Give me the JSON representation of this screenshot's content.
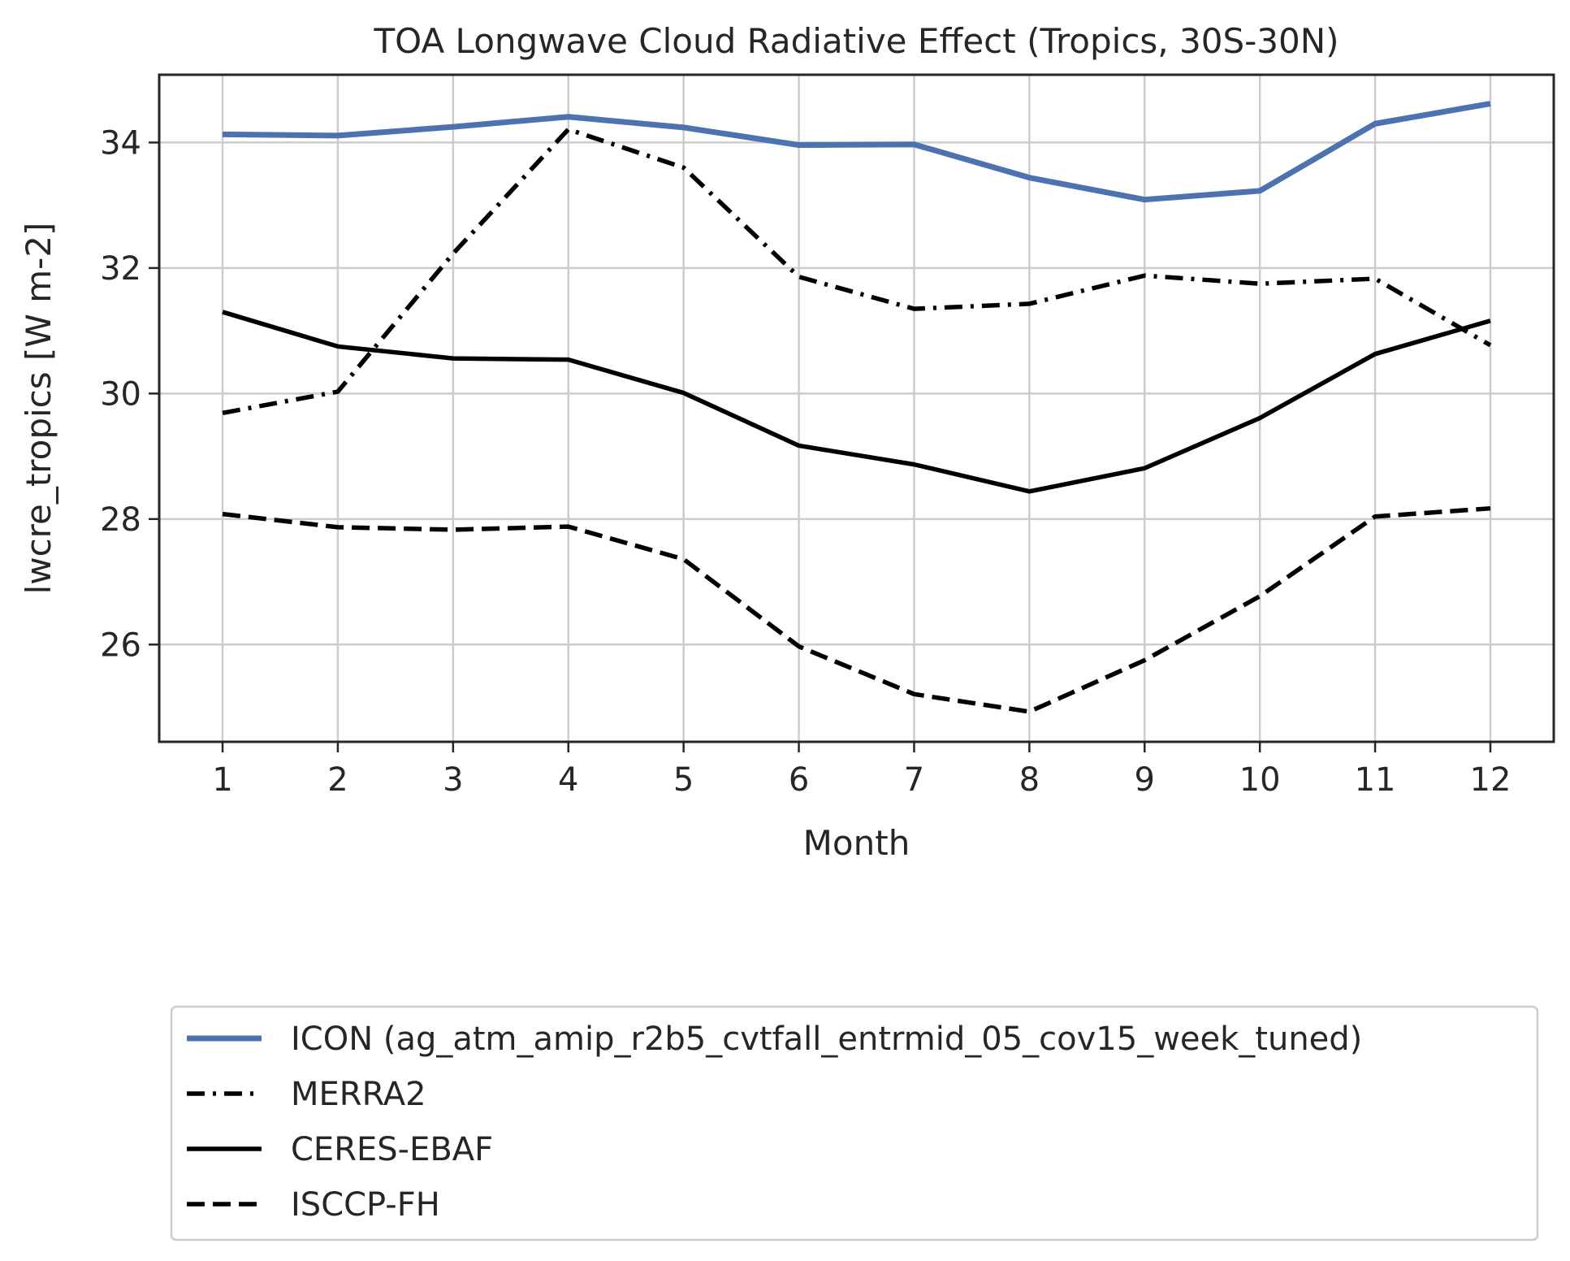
{
  "chart_data": {
    "type": "line",
    "title": "TOA Longwave Cloud Radiative Effect (Tropics, 30S-30N)",
    "xlabel": "Month",
    "ylabel": "lwcre_tropics [W m-2]",
    "x": [
      1,
      2,
      3,
      4,
      5,
      6,
      7,
      8,
      9,
      10,
      11,
      12
    ],
    "x_tick_labels": [
      "1",
      "2",
      "3",
      "4",
      "5",
      "6",
      "7",
      "8",
      "9",
      "10",
      "11",
      "12"
    ],
    "y_ticks": [
      26,
      28,
      30,
      32,
      34
    ],
    "y_tick_labels": [
      "26",
      "28",
      "30",
      "32",
      "34"
    ],
    "xlim": [
      0.45,
      12.55
    ],
    "ylim": [
      24.45,
      35.08
    ],
    "grid": true,
    "legend_position": "below plot",
    "series": [
      {
        "name": "ICON (ag_atm_amip_r2b5_cvtfall_entrmid_05_cov15_week_tuned)",
        "values": [
          34.13,
          34.11,
          34.25,
          34.41,
          34.24,
          33.96,
          33.97,
          33.44,
          33.09,
          33.23,
          34.3,
          34.62
        ],
        "color": "#4c72b0",
        "style": "solid"
      },
      {
        "name": "MERRA2",
        "values": [
          29.69,
          30.03,
          32.23,
          34.21,
          33.6,
          31.86,
          31.35,
          31.43,
          31.88,
          31.75,
          31.83,
          30.77
        ],
        "color": "#000000",
        "style": "dashdot"
      },
      {
        "name": "CERES-EBAF",
        "values": [
          31.3,
          30.75,
          30.56,
          30.54,
          30.01,
          29.17,
          28.87,
          28.44,
          28.81,
          29.61,
          30.63,
          31.16
        ],
        "color": "#000000",
        "style": "solid"
      },
      {
        "name": "ISCCP-FH",
        "values": [
          28.08,
          27.87,
          27.83,
          27.88,
          27.36,
          25.97,
          25.21,
          24.93,
          25.75,
          26.77,
          28.04,
          28.17
        ],
        "color": "#000000",
        "style": "dashed"
      }
    ]
  }
}
